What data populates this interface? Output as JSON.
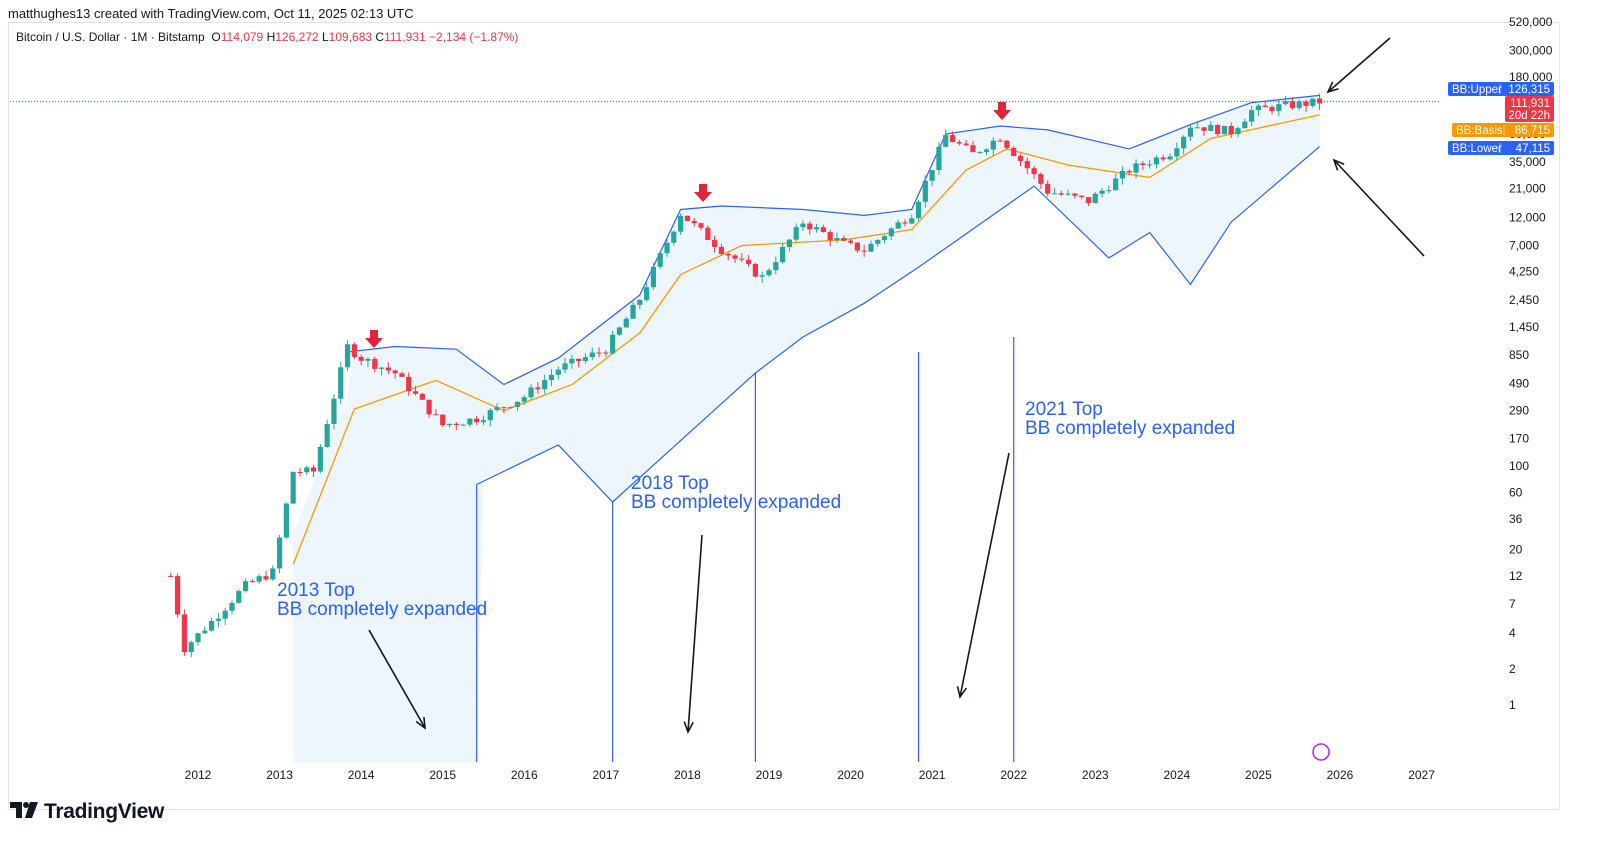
{
  "header": {
    "created_by": "matthughes13 created with TradingView.com, Oct 11, 2025 02:13 UTC"
  },
  "legend": {
    "symbol": "Bitcoin / U.S. Dollar · 1M · Bitstamp",
    "open_label": "O",
    "open": "114,079",
    "high_label": "H",
    "high": "126,272",
    "low_label": "L",
    "low": "109,683",
    "close_label": "C",
    "close": "111,931",
    "change": "−2,134 (−1.87%)"
  },
  "footer": {
    "brand": "TradingView"
  },
  "colors": {
    "up": "#26a69a",
    "down": "#f23645",
    "bb_band": "#2962ff",
    "bb_basis": "#ff9800",
    "fill": "#e3f0fb",
    "arrow": "#131722"
  },
  "badges": [
    {
      "name": "BB:Upper",
      "value": "126,315",
      "color": "#2962ff"
    },
    {
      "name": "",
      "value": "111,931",
      "sub": "20d 22h",
      "color": "#f23645"
    },
    {
      "name": "BB:Basis",
      "value": "86,715",
      "color": "#ff9800"
    },
    {
      "name": "BB:Lower",
      "value": "47,115",
      "color": "#2962ff"
    }
  ],
  "annotations": [
    {
      "line1": "2013 Top",
      "line2": "BB completely expanded"
    },
    {
      "line1": "2018 Top",
      "line2": "BB completely expanded"
    },
    {
      "line1": "2021 Top",
      "line2": "BB completely expanded"
    }
  ],
  "chart_data": {
    "type": "candlestick",
    "title": "Bitcoin / U.S. Dollar · 1M · Bitstamp",
    "y_scale": "log",
    "y_ticks": [
      1,
      2,
      4,
      7,
      12,
      20,
      36,
      60,
      100,
      170,
      290,
      490,
      850,
      1450,
      2450,
      4250,
      7000,
      12000,
      21000,
      35000,
      60000,
      180000,
      300000,
      520000
    ],
    "y_tick_labels": [
      "1",
      "2",
      "4",
      "7",
      "12",
      "20",
      "36",
      "60",
      "100",
      "170",
      "290",
      "490",
      "850",
      "1,450",
      "2,450",
      "4,250",
      "7,000",
      "12,000",
      "21,000",
      "35,000",
      "60,000",
      "180,000",
      "300,000",
      "520,000"
    ],
    "x_ticks": [
      "2012",
      "2013",
      "2014",
      "2015",
      "2016",
      "2017",
      "2018",
      "2019",
      "2020",
      "2021",
      "2022",
      "2023",
      "2024",
      "2025",
      "2026",
      "2027"
    ],
    "price_path": [
      [
        "2011-09",
        12
      ],
      [
        "2011-11",
        3
      ],
      [
        "2012-03",
        5
      ],
      [
        "2012-08",
        10
      ],
      [
        "2012-12",
        13
      ],
      [
        "2013-03",
        90
      ],
      [
        "2013-06",
        90
      ],
      [
        "2013-11",
        1000
      ],
      [
        "2014-01",
        800
      ],
      [
        "2014-06",
        600
      ],
      [
        "2015-01",
        220
      ],
      [
        "2015-06",
        250
      ],
      [
        "2016-01",
        380
      ],
      [
        "2016-06",
        650
      ],
      [
        "2017-01",
        950
      ],
      [
        "2017-06",
        2500
      ],
      [
        "2017-12",
        13000
      ],
      [
        "2018-06",
        6500
      ],
      [
        "2018-12",
        3800
      ],
      [
        "2019-06",
        11000
      ],
      [
        "2019-12",
        7200
      ],
      [
        "2020-03",
        6400
      ],
      [
        "2020-10",
        13000
      ],
      [
        "2021-03",
        58000
      ],
      [
        "2021-07",
        41000
      ],
      [
        "2021-11",
        57000
      ],
      [
        "2022-06",
        19900
      ],
      [
        "2022-12",
        16500
      ],
      [
        "2023-06",
        30000
      ],
      [
        "2023-12",
        42000
      ],
      [
        "2024-03",
        71000
      ],
      [
        "2024-09",
        63000
      ],
      [
        "2024-12",
        94000
      ],
      [
        "2025-05",
        104000
      ],
      [
        "2025-08",
        108000
      ],
      [
        "2025-10",
        111931
      ]
    ],
    "bb_upper": [
      [
        "2013-11",
        900
      ],
      [
        "2014-06",
        1000
      ],
      [
        "2015-03",
        950
      ],
      [
        "2015-10",
        480
      ],
      [
        "2016-06",
        800
      ],
      [
        "2017-06",
        2700
      ],
      [
        "2017-12",
        14000
      ],
      [
        "2018-06",
        15000
      ],
      [
        "2019-06",
        14000
      ],
      [
        "2020-03",
        12500
      ],
      [
        "2020-10",
        14000
      ],
      [
        "2021-03",
        60000
      ],
      [
        "2021-11",
        70000
      ],
      [
        "2022-06",
        65000
      ],
      [
        "2023-06",
        45000
      ],
      [
        "2024-03",
        72000
      ],
      [
        "2024-12",
        110000
      ],
      [
        "2025-10",
        126315
      ]
    ],
    "bb_basis": [
      [
        "2013-03",
        15
      ],
      [
        "2013-12",
        300
      ],
      [
        "2014-12",
        520
      ],
      [
        "2015-10",
        290
      ],
      [
        "2016-08",
        480
      ],
      [
        "2017-06",
        1300
      ],
      [
        "2017-12",
        4000
      ],
      [
        "2018-09",
        7000
      ],
      [
        "2019-12",
        7800
      ],
      [
        "2020-10",
        9500
      ],
      [
        "2021-06",
        30000
      ],
      [
        "2021-12",
        45000
      ],
      [
        "2022-09",
        33000
      ],
      [
        "2023-09",
        26000
      ],
      [
        "2024-06",
        55000
      ],
      [
        "2025-10",
        86715
      ]
    ],
    "bb_lower": [
      [
        "2015-06",
        70
      ],
      [
        "2016-06",
        150
      ],
      [
        "2017-02",
        50
      ],
      [
        "2018-11",
        600
      ],
      [
        "2019-06",
        1200
      ],
      [
        "2020-03",
        2300
      ],
      [
        "2020-11",
        4600
      ],
      [
        "2022-04",
        22000
      ],
      [
        "2023-03",
        5500
      ],
      [
        "2023-09",
        9000
      ],
      [
        "2024-03",
        3300
      ],
      [
        "2024-09",
        11000
      ],
      [
        "2025-10",
        47115
      ]
    ],
    "series": [
      {
        "name": "BB:Upper",
        "last": 126315
      },
      {
        "name": "BB:Basis",
        "last": 86715
      },
      {
        "name": "BB:Lower",
        "last": 47115
      }
    ],
    "last_price": 111931
  }
}
